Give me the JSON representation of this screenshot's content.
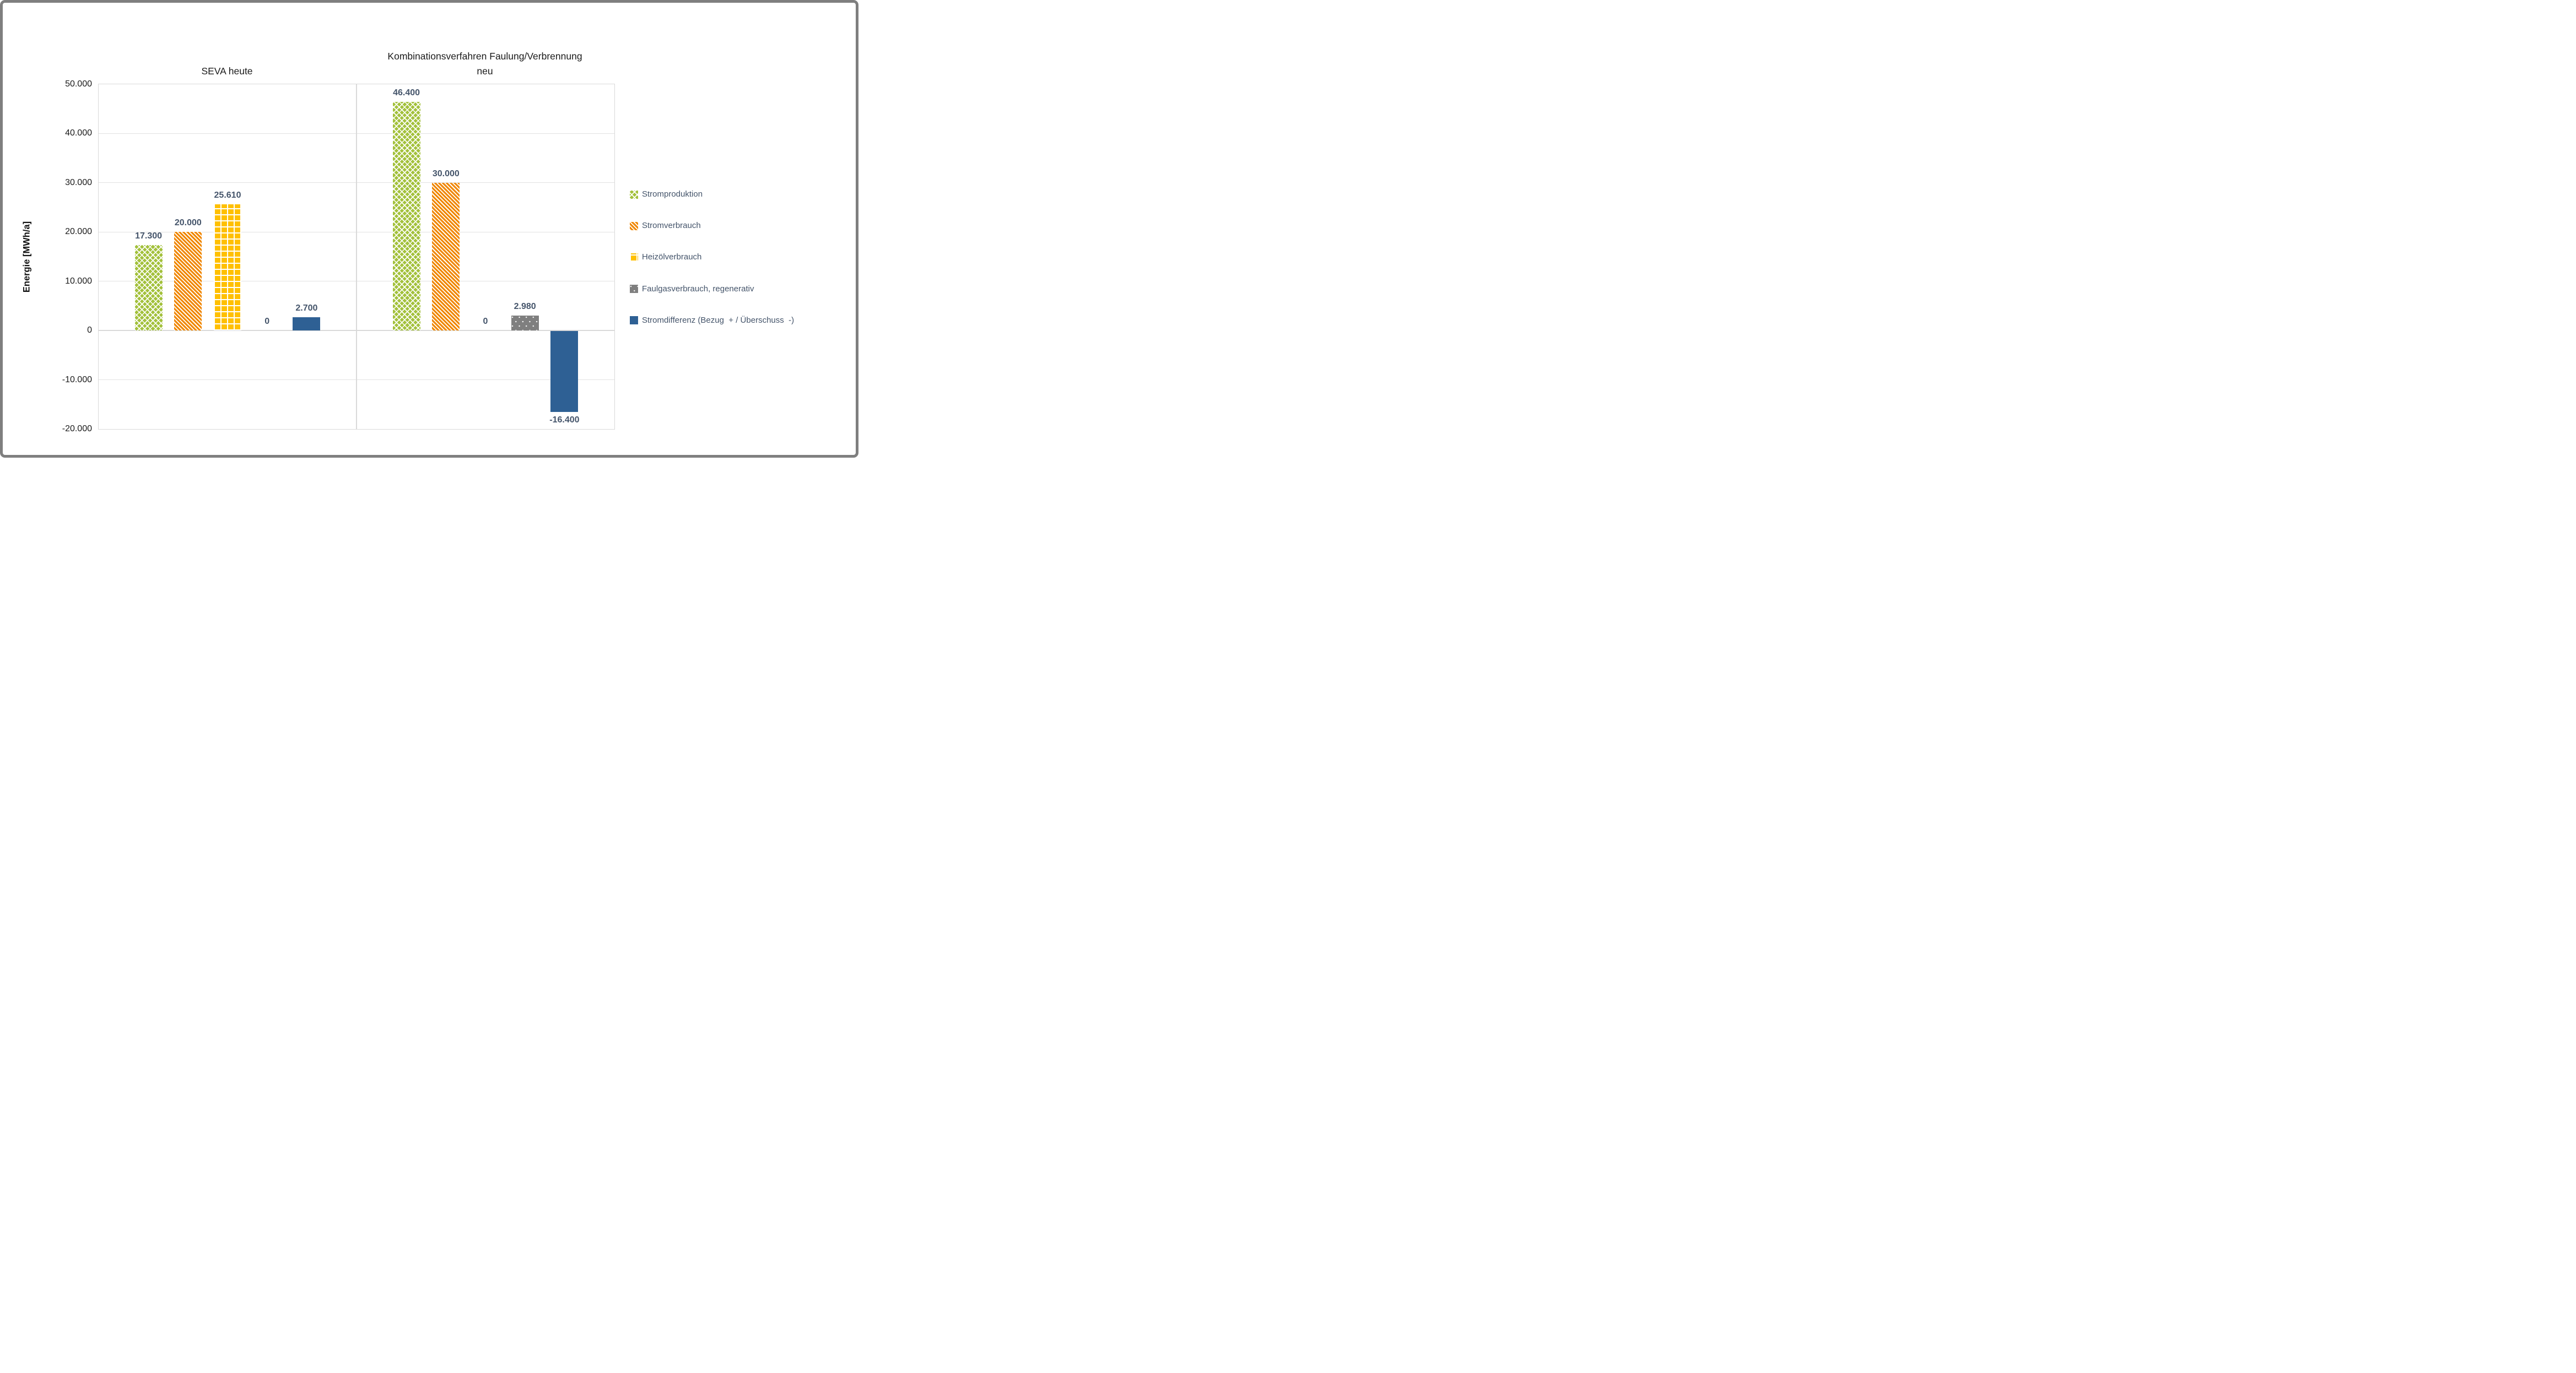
{
  "frame": {
    "border_color": "#7F7F7F",
    "background": "#FFFFFF"
  },
  "colors": {
    "stromproduktion": "#A3C13C",
    "stromverbrauch": "#F08700",
    "heizoelverbrauch": "#FFC000",
    "faulgasverbrauch": "#7F7F7F",
    "stromdifferenz": "#2E6094",
    "label_text": "#44546A",
    "axis_text": "#1A1A1A",
    "gridline": "#D9D9D9"
  },
  "chart_data": {
    "type": "bar",
    "categories": [
      "SEVA heute",
      "Kombinationsverfahren Faulung/Verbrennung\nneu"
    ],
    "series": [
      {
        "name": "Stromproduktion",
        "pattern": "green-crosshatch",
        "color": "#A3C13C",
        "values": [
          17300,
          46400
        ],
        "labels": [
          "17.300",
          "46.400"
        ]
      },
      {
        "name": "Stromverbrauch",
        "pattern": "orange-stripes",
        "color": "#F08700",
        "values": [
          20000,
          30000
        ],
        "labels": [
          "20.000",
          "30.000"
        ]
      },
      {
        "name": "Heizölverbrauch",
        "pattern": "yellow-grid",
        "color": "#FFC000",
        "values": [
          25610,
          0
        ],
        "labels": [
          "25.610",
          "0"
        ]
      },
      {
        "name": "Faulgasverbrauch, regenerativ",
        "pattern": "gray-dots",
        "color": "#7F7F7F",
        "values": [
          0,
          2980
        ],
        "labels": [
          "0",
          "2.980"
        ]
      },
      {
        "name": "Stromdifferenz (Bezug  + / Überschuss  -)",
        "pattern": "blue-solid",
        "color": "#2E6094",
        "values": [
          2700,
          -16400
        ],
        "labels": [
          "2.700",
          "-16.400"
        ]
      }
    ],
    "y_axis": {
      "title": "Energie [MWh/a]",
      "min": -20000,
      "max": 50000,
      "step": 10000,
      "tick_labels": [
        "50.000",
        "40.000",
        "30.000",
        "20.000",
        "10.000",
        "0",
        "-10.000",
        "-20.000"
      ]
    },
    "legend": {
      "position": "right"
    },
    "grid": true
  }
}
